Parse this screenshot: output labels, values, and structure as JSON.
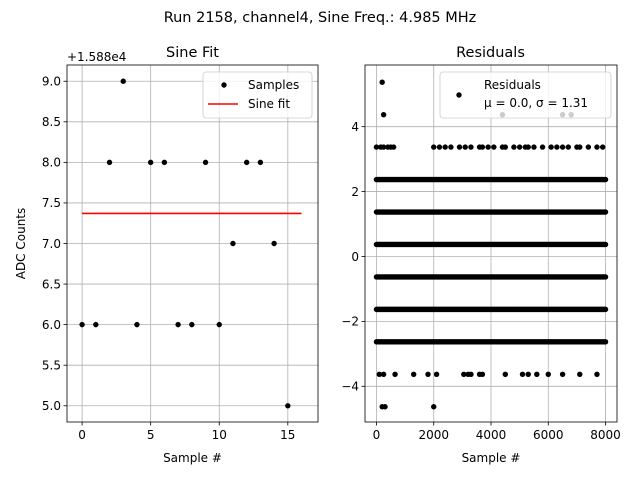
{
  "figure": {
    "suptitle": "Run 2158, channel4, Sine Freq.: 4.985 MHz"
  },
  "chart_data": [
    {
      "type": "scatter",
      "title": "Sine Fit",
      "xlabel": "Sample #",
      "ylabel": "ADC Counts",
      "offset_label": "+1.588e4",
      "xlim": [
        -1.1,
        17.2
      ],
      "ylim": [
        4.8,
        9.2
      ],
      "xticks": [
        0,
        5,
        10,
        15
      ],
      "yticks": [
        5.0,
        5.5,
        6.0,
        6.5,
        7.0,
        7.5,
        8.0,
        8.5,
        9.0
      ],
      "grid": true,
      "legend": {
        "placement": "upper-right",
        "entries": [
          "Samples",
          "Sine fit"
        ]
      },
      "series": [
        {
          "name": "Samples",
          "marker": "dot",
          "color": "#000000",
          "x": [
            0,
            1,
            2,
            3,
            4,
            5,
            6,
            7,
            8,
            9,
            10,
            11,
            12,
            13,
            14,
            15
          ],
          "y": [
            6.0,
            6.0,
            8.0,
            9.0,
            6.0,
            8.0,
            8.0,
            6.0,
            6.0,
            8.0,
            6.0,
            7.0,
            8.0,
            8.0,
            7.0,
            5.0
          ]
        },
        {
          "name": "Sine fit",
          "marker": "line",
          "color": "#ff0000",
          "x": [
            0,
            16
          ],
          "y": [
            7.37,
            7.37
          ]
        }
      ]
    },
    {
      "type": "scatter",
      "title": "Residuals",
      "xlabel": "Sample #",
      "ylabel": "",
      "xlim": [
        -400,
        8400
      ],
      "ylim": [
        -5.1,
        5.9
      ],
      "xticks": [
        0,
        2000,
        4000,
        6000,
        8000
      ],
      "yticks": [
        -4,
        -2,
        0,
        2,
        4
      ],
      "grid": true,
      "legend": {
        "placement": "upper-right",
        "entries": [
          "Residuals",
          "μ = 0.0, σ = 1.31"
        ]
      },
      "dense_bands": [
        {
          "y": 2.37,
          "x_from": 0,
          "x_to": 8000
        },
        {
          "y": 1.37,
          "x_from": 0,
          "x_to": 8000
        },
        {
          "y": 0.37,
          "x_from": 0,
          "x_to": 8000
        },
        {
          "y": -0.63,
          "x_from": 0,
          "x_to": 8000
        },
        {
          "y": -1.63,
          "x_from": 0,
          "x_to": 8000
        },
        {
          "y": -2.63,
          "x_from": 0,
          "x_to": 8000
        }
      ],
      "semi_dense_bands": [
        {
          "y": 3.37,
          "x": [
            0,
            150,
            250,
            400,
            500,
            600,
            2000,
            2200,
            2400,
            2600,
            2900,
            3100,
            3300,
            3600,
            3700,
            3900,
            4100,
            4400,
            4500,
            4800,
            5000,
            5200,
            5300,
            5500,
            5800,
            6100,
            6300,
            6500,
            6700,
            7000,
            7100,
            7400,
            7700,
            7900
          ]
        }
      ],
      "sparse_points": [
        {
          "x": 200,
          "y": 5.37
        },
        {
          "x": 250,
          "y": 4.37
        },
        {
          "x": 4400,
          "y": 4.37
        },
        {
          "x": 6500,
          "y": 4.37
        },
        {
          "x": 6800,
          "y": 4.37
        },
        {
          "x": 100,
          "y": -3.63
        },
        {
          "x": 250,
          "y": -3.63
        },
        {
          "x": 650,
          "y": -3.63
        },
        {
          "x": 1300,
          "y": -3.63
        },
        {
          "x": 1800,
          "y": -3.63
        },
        {
          "x": 2100,
          "y": -3.63
        },
        {
          "x": 3050,
          "y": -3.63
        },
        {
          "x": 3200,
          "y": -3.63
        },
        {
          "x": 3300,
          "y": -3.63
        },
        {
          "x": 3600,
          "y": -3.63
        },
        {
          "x": 3700,
          "y": -3.63
        },
        {
          "x": 4500,
          "y": -3.63
        },
        {
          "x": 5100,
          "y": -3.63
        },
        {
          "x": 5300,
          "y": -3.63
        },
        {
          "x": 5600,
          "y": -3.63
        },
        {
          "x": 6000,
          "y": -3.63
        },
        {
          "x": 6500,
          "y": -3.63
        },
        {
          "x": 7100,
          "y": -3.63
        },
        {
          "x": 7700,
          "y": -3.63
        },
        {
          "x": 200,
          "y": -4.63
        },
        {
          "x": 300,
          "y": -4.63
        },
        {
          "x": 2000,
          "y": -4.63
        }
      ]
    }
  ]
}
